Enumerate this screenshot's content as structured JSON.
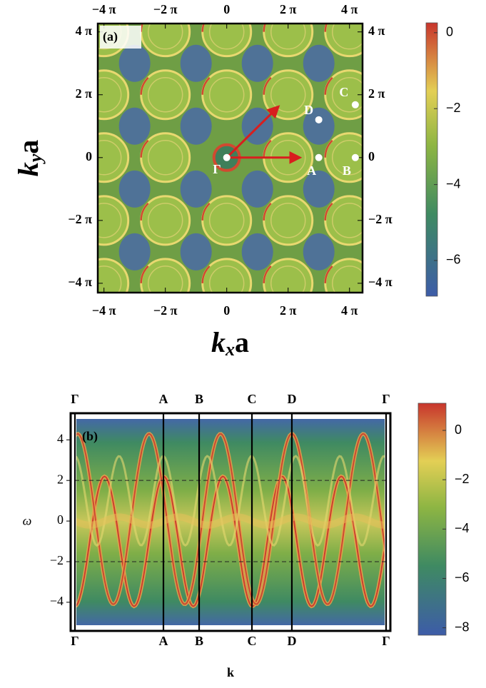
{
  "chart_data": [
    {
      "type": "heatmap",
      "panel_label": "(a)",
      "xlabel": [
        "k",
        "x",
        "a"
      ],
      "ylabel": [
        "k",
        "y",
        "a"
      ],
      "xlim": [
        -13.2,
        13.9
      ],
      "ylim": [
        -13.5,
        13.4
      ],
      "xticks": [
        {
          "value": -12.566,
          "label": "−4 π"
        },
        {
          "value": -6.283,
          "label": "−2 π"
        },
        0,
        {
          "value": 6.283,
          "label": "2 π"
        },
        {
          "value": 12.566,
          "label": "4 π"
        }
      ],
      "yticks": [
        {
          "value": -12.566,
          "label": "−4 π"
        },
        {
          "value": -6.283,
          "label": "−2 π"
        },
        0,
        {
          "value": 6.283,
          "label": "2 π"
        },
        {
          "value": 12.566,
          "label": "4 π"
        }
      ],
      "colorbar": {
        "lim": [
          -6.94,
          0.26
        ],
        "ticks": [
          {
            "value": -6,
            "label": "−6"
          },
          {
            "value": -4,
            "label": "−4"
          },
          {
            "value": -2,
            "label": "−2"
          },
          0
        ]
      },
      "points": [
        {
          "label": "Γ",
          "x": 0,
          "y": 0
        },
        {
          "label": "A",
          "x": 9.42,
          "y": 0
        },
        {
          "label": "B",
          "x": 13.16,
          "y": 0
        },
        {
          "label": "C",
          "x": 13.16,
          "y": 5.28
        },
        {
          "label": "D",
          "x": 9.42,
          "y": 3.78
        }
      ],
      "arrows": [
        {
          "x": [
            0,
            5.26
          ],
          "y": [
            0,
            5.07
          ]
        },
        {
          "x": [
            0,
            7.45
          ],
          "y": [
            0,
            0
          ]
        }
      ]
    },
    {
      "type": "heatmap",
      "panel_label": "(b)",
      "xlabel": "k",
      "ylabel": "ω",
      "xlim": [
        0,
        33.12
      ],
      "ylim": [
        -5.2,
        5.1
      ],
      "xticks": [
        {
          "value": 0,
          "label": "Γ"
        },
        {
          "value": 9.42,
          "label": "A"
        },
        {
          "value": 13.22,
          "label": "B"
        },
        {
          "value": 18.84,
          "label": "C"
        },
        {
          "value": 23.09,
          "label": "D"
        },
        {
          "value": 33.12,
          "label": "Γ"
        }
      ],
      "yticks": [
        {
          "value": -4,
          "label": "−4"
        },
        {
          "value": -2,
          "label": "−2"
        },
        0,
        2,
        4
      ],
      "hlines": [
        2,
        -2
      ],
      "colorbar": {
        "lim": [
          -8.3,
          1.1
        ],
        "ticks": [
          {
            "value": -8,
            "label": "−8"
          },
          {
            "value": -6,
            "label": "−6"
          },
          {
            "value": -4,
            "label": "−4"
          },
          {
            "value": -2,
            "label": "−2"
          },
          0
        ]
      }
    }
  ]
}
